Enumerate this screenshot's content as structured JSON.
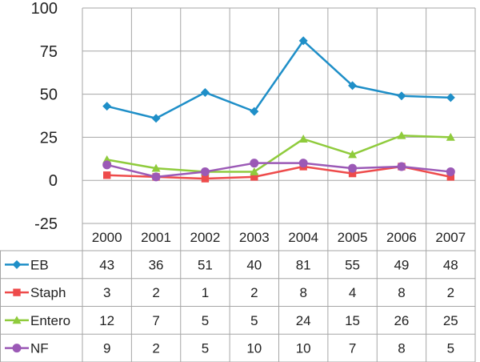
{
  "chart_data": {
    "type": "line",
    "title": "",
    "xlabel": "",
    "ylabel": "",
    "ylim": [
      -25,
      100
    ],
    "yticks": [
      "100",
      "75",
      "50",
      "25",
      "0",
      "-25"
    ],
    "categories": [
      "2000",
      "2001",
      "2002",
      "2003",
      "2004",
      "2005",
      "2006",
      "2007"
    ],
    "legend_position": "table-left",
    "series": [
      {
        "name": "EB",
        "values": [
          43,
          36,
          51,
          40,
          81,
          55,
          49,
          48
        ],
        "color": "#1f8fc8",
        "marker": "diamond"
      },
      {
        "name": "Staph",
        "values": [
          3,
          2,
          1,
          2,
          8,
          4,
          8,
          2
        ],
        "color": "#ee4b4b",
        "marker": "square"
      },
      {
        "name": "Entero",
        "values": [
          12,
          7,
          5,
          5,
          24,
          15,
          26,
          25
        ],
        "color": "#8fcb3c",
        "marker": "triangle"
      },
      {
        "name": "NF",
        "values": [
          9,
          2,
          5,
          10,
          10,
          7,
          8,
          5
        ],
        "color": "#9b59b6",
        "marker": "circle"
      }
    ]
  }
}
